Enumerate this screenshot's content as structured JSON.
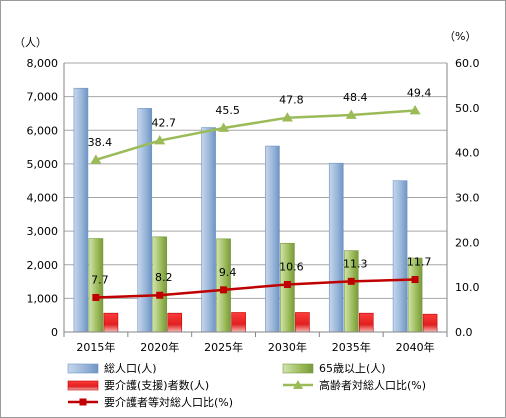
{
  "chart_data": {
    "type": "bar",
    "categories": [
      "2015年",
      "2020年",
      "2025年",
      "2030年",
      "2035年",
      "2040年"
    ],
    "y_left_unit": "（人）",
    "y_right_unit": "（%）",
    "ylim_left": [
      0,
      8000
    ],
    "ylim_right": [
      0,
      60
    ],
    "y_left_ticks": [
      "0",
      "1,000",
      "2,000",
      "3,000",
      "4,000",
      "5,000",
      "6,000",
      "7,000",
      "8,000"
    ],
    "y_right_ticks": [
      "0.0",
      "10.0",
      "20.0",
      "30.0",
      "40.0",
      "50.0",
      "60.0"
    ],
    "grid": true,
    "legend_position": "bottom",
    "series": [
      {
        "name": "総人口(人)",
        "kind": "bar",
        "axis": "left",
        "color": "#95b3d7",
        "values": [
          7250,
          6650,
          6080,
          5530,
          5020,
          4500
        ]
      },
      {
        "name": "65歳以上(人)",
        "kind": "bar",
        "axis": "left",
        "color": "#9bbb59",
        "values": [
          2780,
          2830,
          2770,
          2640,
          2420,
          2200
        ]
      },
      {
        "name": "要介護(支援)者数(人)",
        "kind": "bar",
        "axis": "left",
        "color": "#e03030",
        "values": [
          560,
          560,
          580,
          580,
          560,
          530
        ]
      },
      {
        "name": "高齢者対総人口比(%)",
        "kind": "line",
        "axis": "right",
        "color": "#9bbb59",
        "marker": "triangle",
        "values": [
          38.4,
          42.7,
          45.5,
          47.8,
          48.4,
          49.4
        ],
        "labels": [
          "38.4",
          "42.7",
          "45.5",
          "47.8",
          "48.4",
          "49.4"
        ]
      },
      {
        "name": "要介護者等対総人口比(%)",
        "kind": "line",
        "axis": "right",
        "color": "#c00000",
        "marker": "square",
        "values": [
          7.7,
          8.2,
          9.4,
          10.6,
          11.3,
          11.7
        ],
        "labels": [
          "7.7",
          "8.2",
          "9.4",
          "10.6",
          "11.3",
          "11.7"
        ]
      }
    ]
  }
}
